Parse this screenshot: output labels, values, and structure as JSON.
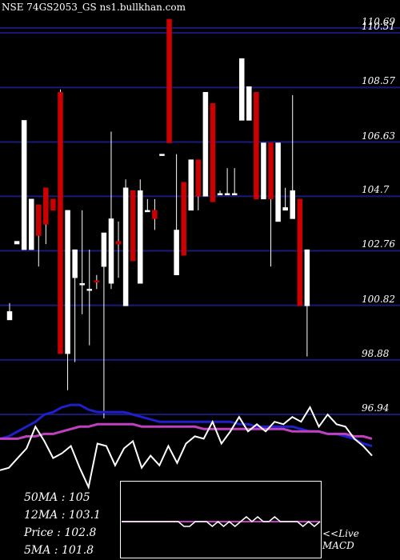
{
  "header": {
    "title": "NSE 74GS2053_GS ns1.bullkhan.com"
  },
  "indicators": {
    "ma50": "50MA : 105",
    "ma12": "12MA : 103.1",
    "price": "Price   : 102.8",
    "ma5": "5MA : 101.8"
  },
  "macd_panel": {
    "line1": "<<Live",
    "line2": "MACD"
  },
  "colors": {
    "background": "#000000",
    "up_candle": "#ffffff",
    "down_candle": "#cc0000",
    "grid": "#1a1a7a",
    "ma_blue": "#1f1fcc",
    "ma_magenta": "#c040c0",
    "price_line": "#ffffff"
  },
  "chart_data": {
    "type": "candlestick",
    "ylim": [
      95.6,
      111.0
    ],
    "y_ticks": [
      110.69,
      110.51,
      108.57,
      106.63,
      104.7,
      102.76,
      100.82,
      98.88,
      96.94
    ],
    "y_tick_labels": [
      "110.69",
      "110.51",
      "108.57",
      "106.63",
      "104.7",
      "102.76",
      "100.82",
      "98.88",
      "96.94"
    ],
    "grid": true,
    "candles": [
      {
        "o": 100.6,
        "h": 100.9,
        "l": 100.3,
        "c": 100.3,
        "dir": "up"
      },
      {
        "o": 103.1,
        "h": 103.1,
        "l": 103.0,
        "c": 103.0,
        "dir": "up"
      },
      {
        "o": 107.4,
        "h": 107.4,
        "l": 102.8,
        "c": 102.8,
        "dir": "up"
      },
      {
        "o": 104.6,
        "h": 104.6,
        "l": 102.8,
        "c": 102.8,
        "dir": "up"
      },
      {
        "o": 103.3,
        "h": 104.4,
        "l": 102.2,
        "c": 104.4,
        "dir": "down"
      },
      {
        "o": 103.7,
        "h": 105.0,
        "l": 103.0,
        "c": 105.0,
        "dir": "down"
      },
      {
        "o": 104.2,
        "h": 104.6,
        "l": 104.2,
        "c": 104.6,
        "dir": "down"
      },
      {
        "o": 99.1,
        "h": 108.5,
        "l": 99.1,
        "c": 108.4,
        "dir": "down"
      },
      {
        "o": 104.2,
        "h": 104.2,
        "l": 97.8,
        "c": 99.1,
        "dir": "up"
      },
      {
        "o": 101.8,
        "h": 102.8,
        "l": 98.8,
        "c": 102.8,
        "dir": "up"
      },
      {
        "o": 101.6,
        "h": 104.2,
        "l": 100.5,
        "c": 101.6,
        "dir": "up"
      },
      {
        "o": 101.4,
        "h": 102.8,
        "l": 99.4,
        "c": 101.4,
        "dir": "up"
      },
      {
        "o": 101.7,
        "h": 101.9,
        "l": 101.4,
        "c": 101.7,
        "dir": "down"
      },
      {
        "o": 102.2,
        "h": 103.4,
        "l": 96.8,
        "c": 103.4,
        "dir": "up"
      },
      {
        "o": 103.9,
        "h": 107.0,
        "l": 101.4,
        "c": 101.6,
        "dir": "up"
      },
      {
        "o": 103.0,
        "h": 103.8,
        "l": 101.8,
        "c": 103.1,
        "dir": "down"
      },
      {
        "o": 105.0,
        "h": 105.3,
        "l": 100.8,
        "c": 100.8,
        "dir": "up"
      },
      {
        "o": 102.4,
        "h": 104.9,
        "l": 102.4,
        "c": 104.9,
        "dir": "down"
      },
      {
        "o": 104.9,
        "h": 105.3,
        "l": 101.6,
        "c": 101.6,
        "dir": "up"
      },
      {
        "o": 104.2,
        "h": 104.6,
        "l": 104.2,
        "c": 104.2,
        "dir": "up"
      },
      {
        "o": 103.9,
        "h": 104.6,
        "l": 103.5,
        "c": 104.2,
        "dir": "down"
      },
      {
        "o": 106.2,
        "h": 106.2,
        "l": 106.2,
        "c": 106.2,
        "dir": "up"
      },
      {
        "o": 106.6,
        "h": 111.0,
        "l": 106.6,
        "c": 111.0,
        "dir": "down"
      },
      {
        "o": 101.9,
        "h": 106.2,
        "l": 101.9,
        "c": 103.5,
        "dir": "up"
      },
      {
        "o": 102.6,
        "h": 105.2,
        "l": 102.6,
        "c": 105.2,
        "dir": "down"
      },
      {
        "o": 104.2,
        "h": 106.0,
        "l": 104.2,
        "c": 106.0,
        "dir": "up"
      },
      {
        "o": 104.7,
        "h": 106.0,
        "l": 104.2,
        "c": 106.0,
        "dir": "down"
      },
      {
        "o": 104.7,
        "h": 108.4,
        "l": 104.7,
        "c": 108.4,
        "dir": "up"
      },
      {
        "o": 104.5,
        "h": 108.0,
        "l": 104.5,
        "c": 108.0,
        "dir": "down"
      },
      {
        "o": 104.8,
        "h": 104.9,
        "l": 104.8,
        "c": 104.8,
        "dir": "up"
      },
      {
        "o": 104.8,
        "h": 105.7,
        "l": 104.8,
        "c": 104.8,
        "dir": "up"
      },
      {
        "o": 104.8,
        "h": 105.7,
        "l": 104.8,
        "c": 104.8,
        "dir": "up"
      },
      {
        "o": 109.6,
        "h": 109.6,
        "l": 107.4,
        "c": 107.4,
        "dir": "up"
      },
      {
        "o": 107.4,
        "h": 108.6,
        "l": 107.4,
        "c": 108.6,
        "dir": "up"
      },
      {
        "o": 104.6,
        "h": 108.4,
        "l": 104.6,
        "c": 108.4,
        "dir": "down"
      },
      {
        "o": 104.6,
        "h": 106.6,
        "l": 104.6,
        "c": 106.6,
        "dir": "up"
      },
      {
        "o": 104.6,
        "h": 106.6,
        "l": 102.2,
        "c": 106.6,
        "dir": "down"
      },
      {
        "o": 103.8,
        "h": 106.6,
        "l": 103.8,
        "c": 106.6,
        "dir": "up"
      },
      {
        "o": 104.2,
        "h": 105.0,
        "l": 104.2,
        "c": 104.3,
        "dir": "up"
      },
      {
        "o": 103.9,
        "h": 108.3,
        "l": 103.9,
        "c": 104.9,
        "dir": "up"
      },
      {
        "o": 100.8,
        "h": 104.6,
        "l": 100.8,
        "c": 104.6,
        "dir": "down"
      },
      {
        "o": 100.8,
        "h": 102.8,
        "l": 99.0,
        "c": 102.8,
        "dir": "up"
      }
    ],
    "ma_lines": [
      {
        "color": "blue",
        "values": [
          95.8,
          95.9,
          96.1,
          96.3,
          96.5,
          96.8,
          96.9,
          97.1,
          97.2,
          97.2,
          97.0,
          96.9,
          96.9,
          96.9,
          96.9,
          96.8,
          96.7,
          96.6,
          96.5,
          96.5,
          96.5,
          96.5,
          96.5,
          96.5,
          96.5,
          96.5,
          96.5,
          96.4,
          96.4,
          96.3,
          96.3,
          96.3,
          96.3,
          96.3,
          96.2,
          96.1,
          96.1,
          96.0,
          96.0,
          95.9,
          95.8,
          95.6,
          95.5
        ]
      },
      {
        "color": "magenta",
        "values": [
          95.8,
          95.8,
          95.8,
          95.9,
          95.9,
          96.0,
          96.0,
          96.1,
          96.2,
          96.3,
          96.3,
          96.4,
          96.4,
          96.4,
          96.4,
          96.4,
          96.3,
          96.3,
          96.3,
          96.3,
          96.3,
          96.3,
          96.3,
          96.2,
          96.2,
          96.2,
          96.2,
          96.2,
          96.2,
          96.2,
          96.2,
          96.2,
          96.2,
          96.1,
          96.1,
          96.1,
          96.1,
          96.0,
          96.0,
          96.0,
          95.9,
          95.9,
          95.8
        ]
      },
      {
        "color": "white",
        "values": [
          94.5,
          94.6,
          95.0,
          95.4,
          96.3,
          95.7,
          95.0,
          95.2,
          95.5,
          94.6,
          93.8,
          95.6,
          95.5,
          94.7,
          95.4,
          95.7,
          94.6,
          95.1,
          94.7,
          95.5,
          94.8,
          95.6,
          95.9,
          95.8,
          96.5,
          95.6,
          96.1,
          96.7,
          96.1,
          96.4,
          96.1,
          96.5,
          96.4,
          96.7,
          96.5,
          97.1,
          96.3,
          96.8,
          96.4,
          96.3,
          95.8,
          95.5,
          95.1
        ]
      }
    ],
    "macd": {
      "values": [
        0.0,
        0.0,
        0.0,
        0.0,
        0.0,
        0.0,
        0.0,
        0.0,
        0.0,
        0.0,
        0.0,
        -0.6,
        -0.6,
        0.0,
        0.0,
        0.0,
        -0.6,
        0.0,
        -0.6,
        0.0,
        -0.6,
        0.0,
        0.6,
        0.0,
        0.6,
        0.0,
        0.0,
        0.6,
        0.0,
        0.0,
        0.0,
        0.0,
        -0.6,
        0.0,
        -0.6,
        0.0
      ]
    }
  }
}
